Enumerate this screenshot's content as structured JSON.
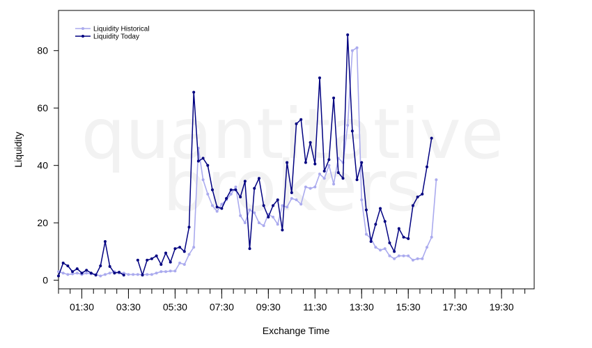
{
  "watermark": {
    "line1": "quantitative",
    "line2": "brokers"
  },
  "chart_data": {
    "type": "line",
    "xlabel": "Exchange Time",
    "ylabel": "Liquidity",
    "xlim": [
      0,
      102
    ],
    "ylim": [
      -3,
      94
    ],
    "yticks": [
      0,
      20,
      40,
      60,
      80
    ],
    "x_ticks": [
      {
        "x": 5,
        "label": "01:30"
      },
      {
        "x": 15,
        "label": "03:30"
      },
      {
        "x": 25,
        "label": "05:30"
      },
      {
        "x": 35,
        "label": "07:30"
      },
      {
        "x": 45,
        "label": "09:30"
      },
      {
        "x": 55,
        "label": "11:30"
      },
      {
        "x": 65,
        "label": "13:30"
      },
      {
        "x": 75,
        "label": "15:30"
      },
      {
        "x": 85,
        "label": "17:30"
      },
      {
        "x": 95,
        "label": "19:30"
      }
    ],
    "x_minor_ticks_every": 2.5,
    "x_minor_ticks_range": [
      0,
      102
    ],
    "grid": false,
    "legend_position": "top-left",
    "series": [
      {
        "name": "Liquidity Historical",
        "color": "#aaaaee",
        "values": [
          3,
          2.5,
          2,
          2.2,
          2.5,
          2,
          2.5,
          2.2,
          2,
          1.5,
          2,
          2.5,
          3,
          2.5,
          2.5,
          2,
          2,
          2,
          2,
          2,
          2,
          2.5,
          3,
          3,
          3.2,
          3.2,
          6,
          5.5,
          9,
          11.5,
          46,
          35,
          30,
          26,
          24,
          26.5,
          28,
          30,
          32.5,
          22.5,
          20,
          24.5,
          23.5,
          20,
          19,
          23,
          22,
          19.5,
          26,
          25.5,
          28.5,
          28,
          26.5,
          32.5,
          32,
          32.5,
          37,
          35.5,
          40,
          33.5,
          42.5,
          41,
          54,
          80,
          81,
          28,
          16,
          14.5,
          11.5,
          10.5,
          11,
          8.5,
          7.5,
          8.5,
          8.5,
          8.5,
          7,
          7.5,
          7.5,
          11.5,
          15,
          35
        ]
      },
      {
        "name": "Liquidity Today",
        "color": "#000080",
        "values": [
          1.5,
          6,
          5,
          3,
          4,
          2.5,
          3.5,
          2.5,
          1.8,
          5,
          13.5,
          4.8,
          2.5,
          2.8,
          1.8,
          null,
          null,
          7,
          1.8,
          7,
          7.5,
          8.5,
          5.5,
          9.5,
          6.3,
          11,
          11.5,
          10,
          18.5,
          65.5,
          41.5,
          42.5,
          40,
          31.5,
          25.5,
          25,
          28.5,
          31.5,
          31.5,
          29,
          34.5,
          11,
          32,
          35.5,
          26,
          22,
          26,
          28,
          17.5,
          41,
          30.5,
          54.5,
          56,
          41,
          48,
          40.5,
          70.5,
          38,
          42,
          63.5,
          37.5,
          35.5,
          85.5,
          52,
          35,
          41,
          24.5,
          13.5,
          19.5,
          25,
          20.5,
          13,
          10,
          18,
          15,
          14.5,
          26,
          29,
          30,
          39.5,
          49.5
        ]
      }
    ]
  }
}
